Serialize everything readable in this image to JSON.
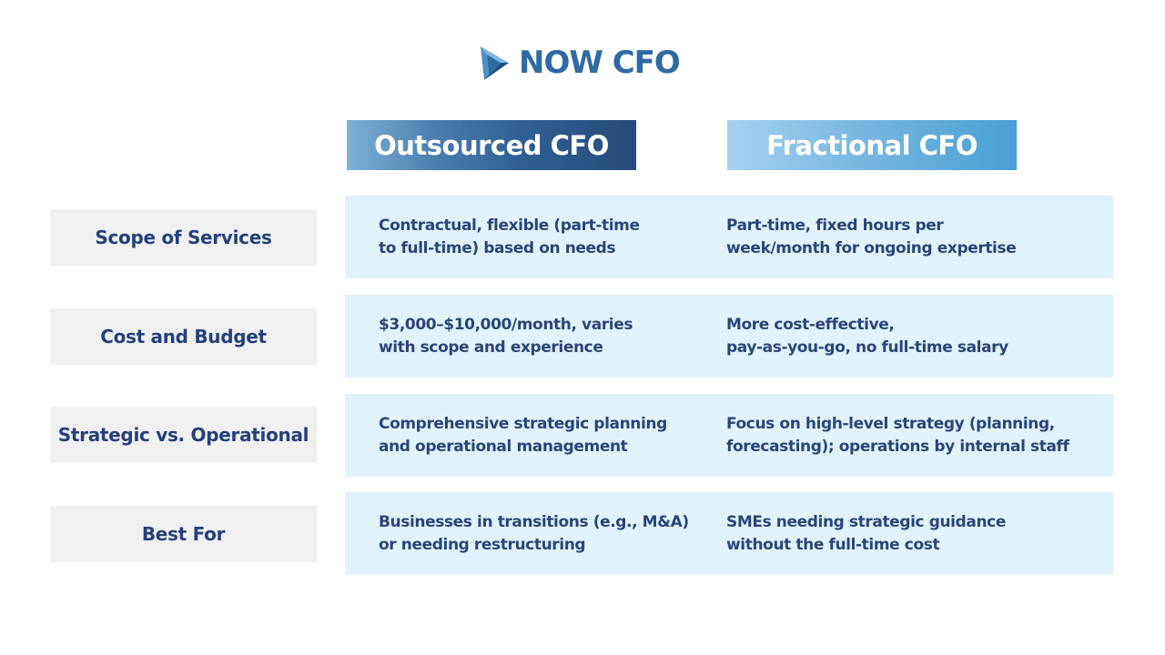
{
  "brand": {
    "name": "NOW CFO",
    "primary_color": "#2f6aa3",
    "accent_dark": "#284a7c",
    "accent_light": "#489fd3"
  },
  "columns": {
    "outsourced": "Outsourced CFO",
    "fractional": "Fractional CFO"
  },
  "rows": [
    {
      "label": "Scope of Services",
      "outsourced": "Contractual, flexible (part-time\nto full-time) based on needs",
      "fractional": "Part-time, fixed hours per\nweek/month for ongoing expertise"
    },
    {
      "label": "Cost and Budget",
      "outsourced": "$3,000–$10,000/month, varies\nwith scope and experience",
      "fractional": "More cost-effective,\npay-as-you-go, no full-time salary"
    },
    {
      "label": "Strategic vs. Operational",
      "outsourced": "Comprehensive strategic planning\nand operational management",
      "fractional": "Focus on high-level strategy (planning,\nforecasting); operations by internal staff"
    },
    {
      "label": "Best For",
      "outsourced": "Businesses in transitions (e.g., M&A)\nor needing restructuring",
      "fractional": "SMEs needing strategic guidance\nwithout the full-time cost"
    }
  ]
}
